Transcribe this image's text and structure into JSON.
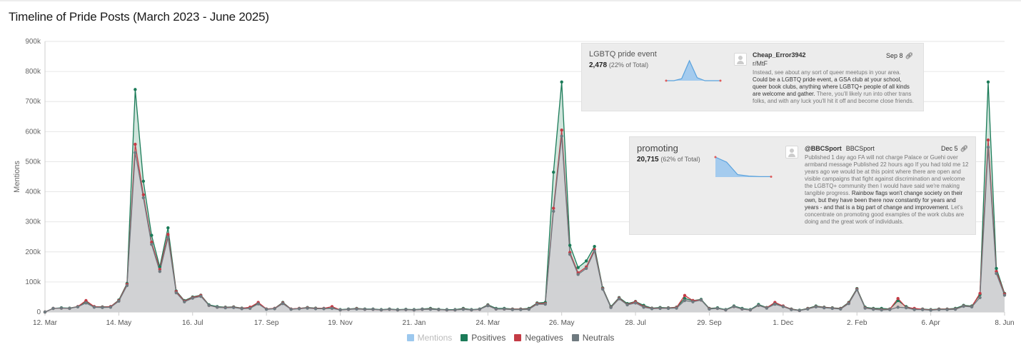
{
  "title": "Timeline of Pride Posts (March 2023 - June 2025)",
  "legend": [
    {
      "label": "Mentions",
      "color": "#9cc8ee",
      "dim": true
    },
    {
      "label": "Positives",
      "color": "#1b7b58",
      "dim": false
    },
    {
      "label": "Negatives",
      "color": "#c43b45",
      "dim": false
    },
    {
      "label": "Neutrals",
      "color": "#6f7a80",
      "dim": false
    }
  ],
  "cards": [
    {
      "term": "LGBTQ pride event",
      "count": "2,478",
      "pct": "(22% of Total)",
      "author": "Cheap_Error3942",
      "source": "r/MtF",
      "date": "Sep 8",
      "text_pre": "Instead, see about any sort of queer meetups in your area. ",
      "text_bold": "Could be a LGBTQ pride event, a GSA club at your school, queer book clubs, anything where LGBTQ+ people of all kinds are welcome and gather.",
      "text_post": " There, you'll likely run into other trans folks, and with any luck you'll hit it off and become close friends.",
      "spark": [
        0,
        0,
        0.1,
        1,
        0.15,
        0,
        0,
        0
      ]
    },
    {
      "term": "promoting",
      "count": "20,715",
      "pct": "(62% of Total)",
      "author": "@BBCSport",
      "author_sub": "BBCSport",
      "date": "Dec 5",
      "text_pre": "Published 1 day ago FA will not charge Palace or Guehi over armband message Published 22 hours ago If you had told me 12 years ago we would be at this point where there are open and visible campaigns that fight against discrimination and welcome the LGBTQ+ community then I would have said we're making tangible progress. ",
      "text_bold": "Rainbow flags won't change society on their own, but they have been there now constantly for years and years - and that is a big part of change and improvement.",
      "text_post": " Let's concentrate on promoting good examples of the work clubs are doing and the great work of individuals.",
      "spark": [
        1,
        0.75,
        0.12,
        0.05,
        0.02,
        0.02
      ]
    }
  ],
  "chart_data": {
    "type": "area",
    "title": "Timeline of Pride Posts (March 2023 - June 2025)",
    "ylabel": "Mentions",
    "xlabel": "",
    "ylim": [
      0,
      900000
    ],
    "y_ticks": [
      "0",
      "100k",
      "200k",
      "300k",
      "400k",
      "500k",
      "600k",
      "700k",
      "800k",
      "900k"
    ],
    "x_tick_labels": [
      "12. Mar",
      "14. May",
      "16. Jul",
      "17. Sep",
      "19. Nov",
      "21. Jan",
      "24. Mar",
      "26. May",
      "28. Jul",
      "29. Sep",
      "1. Dec",
      "2. Feb",
      "6. Apr",
      "8. Jun"
    ],
    "x_tick_index": [
      0,
      9,
      18,
      27,
      36,
      45,
      54,
      63,
      72,
      81,
      90,
      99,
      108,
      117
    ],
    "colors": {
      "positives": "#1b7b58",
      "negatives": "#c43b45",
      "neutrals": "#6f7a80",
      "mentions": "#9cc8ee"
    },
    "series": [
      {
        "name": "Positives",
        "values": [
          0,
          12000,
          14000,
          13000,
          18000,
          35000,
          18000,
          17000,
          18000,
          40000,
          95000,
          740000,
          435000,
          255000,
          150000,
          280000,
          70000,
          38000,
          50000,
          56000,
          24000,
          18000,
          16000,
          17000,
          13000,
          15000,
          30000,
          10000,
          12000,
          32000,
          10000,
          12000,
          15000,
          13000,
          12000,
          13000,
          8000,
          10000,
          12000,
          10000,
          10000,
          8000,
          10000,
          8000,
          9000,
          8000,
          10000,
          12000,
          9000,
          8000,
          8000,
          12000,
          8000,
          10000,
          24000,
          12000,
          12000,
          10000,
          10000,
          12000,
          30000,
          32000,
          465000,
          765000,
          222000,
          148000,
          170000,
          218000,
          80000,
          18000,
          48000,
          28000,
          35000,
          22000,
          13000,
          15000,
          14000,
          16000,
          45000,
          38000,
          42000,
          12000,
          14000,
          8000,
          20000,
          12000,
          8000,
          25000,
          15000,
          30000,
          20000,
          10000,
          6000,
          12000,
          20000,
          16000,
          14000,
          12000,
          32000,
          78000,
          16000,
          12000,
          12000,
          10000,
          38000,
          18000,
          10000,
          10000,
          8000,
          10000,
          10000,
          12000,
          22000,
          20000,
          58000,
          765000,
          145000,
          62000
        ]
      },
      {
        "name": "Negatives",
        "values": [
          0,
          12000,
          13000,
          12000,
          18000,
          38000,
          18000,
          16000,
          18000,
          38000,
          92000,
          558000,
          390000,
          232000,
          142000,
          258000,
          68000,
          36000,
          48000,
          55000,
          22000,
          16000,
          15000,
          16000,
          12000,
          16000,
          32000,
          10000,
          12000,
          30000,
          10000,
          12000,
          14000,
          12000,
          12000,
          18000,
          7000,
          9000,
          11000,
          9000,
          9000,
          7000,
          9000,
          7000,
          8000,
          7000,
          9000,
          10000,
          8000,
          7000,
          7000,
          10000,
          7000,
          9000,
          22000,
          10000,
          10000,
          9000,
          9000,
          10000,
          28000,
          28000,
          345000,
          605000,
          198000,
          130000,
          150000,
          208000,
          78000,
          16000,
          46000,
          25000,
          34000,
          18000,
          12000,
          13000,
          13000,
          15000,
          55000,
          38000,
          40000,
          11000,
          12000,
          7000,
          18000,
          10000,
          7000,
          22000,
          14000,
          32000,
          20000,
          9000,
          5000,
          11000,
          18000,
          15000,
          13000,
          11000,
          30000,
          76000,
          14000,
          10000,
          8000,
          9000,
          45000,
          15000,
          12000,
          9000,
          7000,
          9000,
          9000,
          10000,
          20000,
          18000,
          62000,
          572000,
          135000,
          60000
        ]
      },
      {
        "name": "Neutrals",
        "values": [
          0,
          12000,
          13000,
          12000,
          17000,
          30000,
          16000,
          15000,
          16000,
          36000,
          88000,
          530000,
          380000,
          225000,
          135000,
          248000,
          64000,
          34000,
          46000,
          52000,
          22000,
          16000,
          14000,
          15000,
          11000,
          12000,
          27000,
          9000,
          11000,
          28000,
          9000,
          11000,
          13000,
          11000,
          11000,
          12000,
          7000,
          9000,
          10000,
          9000,
          9000,
          7000,
          9000,
          7000,
          8000,
          7000,
          9000,
          9000,
          8000,
          7000,
          7000,
          9000,
          7000,
          9000,
          21000,
          10000,
          10000,
          8000,
          8000,
          9000,
          26000,
          26000,
          335000,
          585000,
          192000,
          125000,
          145000,
          202000,
          76000,
          15000,
          44000,
          24000,
          30000,
          16000,
          11000,
          12000,
          12000,
          13000,
          38000,
          34000,
          40000,
          10000,
          12000,
          7000,
          18000,
          10000,
          7000,
          22000,
          13000,
          26000,
          18000,
          8000,
          5000,
          10000,
          17000,
          14000,
          12000,
          10000,
          28000,
          74000,
          13000,
          9000,
          7000,
          8000,
          16000,
          14000,
          8000,
          8000,
          6000,
          8000,
          8000,
          9000,
          19000,
          17000,
          48000,
          548000,
          128000,
          56000
        ]
      }
    ]
  }
}
